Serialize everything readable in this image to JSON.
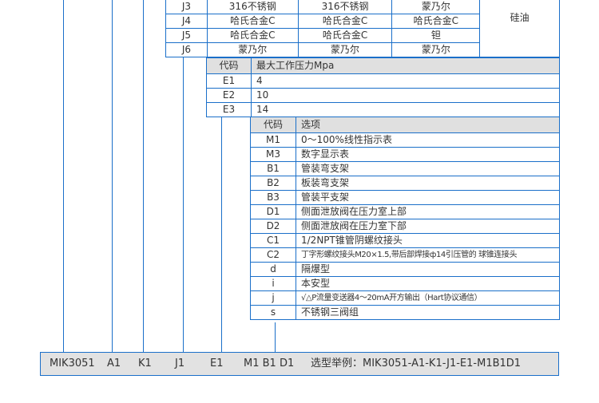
{
  "material_table": {
    "rows": [
      {
        "code": "J3",
        "c1": "316不锈钢",
        "c2": "316不锈钢",
        "c3": "蒙乃尔"
      },
      {
        "code": "J4",
        "c1": "哈氏合金C",
        "c2": "哈氏合金C",
        "c3": "哈氏合金C"
      },
      {
        "code": "J5",
        "c1": "哈氏合金C",
        "c2": "哈氏合金C",
        "c3": "钽"
      },
      {
        "code": "J6",
        "c1": "蒙乃尔",
        "c2": "蒙乃尔",
        "c3": "蒙乃尔"
      }
    ],
    "fill": "硅油"
  },
  "pressure_table": {
    "header": [
      "代码",
      "最大工作压力Mpa"
    ],
    "rows": [
      [
        "E1",
        "4"
      ],
      [
        "E2",
        "10"
      ],
      [
        "E3",
        "14"
      ]
    ]
  },
  "options_table": {
    "header": [
      "代码",
      "选项"
    ],
    "rows": [
      [
        "M1",
        "0～100%线性指示表"
      ],
      [
        "M3",
        "数字显示表"
      ],
      [
        "B1",
        "管装弯支架"
      ],
      [
        "B2",
        "板装弯支架"
      ],
      [
        "B3",
        "管装平支架"
      ],
      [
        "D1",
        "侧面泄放阀在压力室上部"
      ],
      [
        "D2",
        "侧面泄放阀在压力室下部"
      ],
      [
        "C1",
        "1/2NPT锥管阴螺纹接头"
      ],
      [
        "C2",
        "丁字形螺纹接头M20×1.5,带后部焊接ф14引压管的 球锥连接头"
      ],
      [
        "d",
        "隔爆型"
      ],
      [
        "i",
        "本安型"
      ],
      [
        "j",
        "√△P流量变送器4～20mA开方输出（Hart协议通信）"
      ],
      [
        "s",
        "不锈钢三阀组"
      ]
    ]
  },
  "example_bar": {
    "model": "MIK3051",
    "a": "A1",
    "k": "K1",
    "j": "J1",
    "e": "E1",
    "opts": "M1 B1 D1",
    "example": "选型举例：MIK3051-A1-K1-J1-E1-M1B1D1"
  },
  "colors": {
    "line": "#1a6fc9",
    "header_bg": "#e0e0e0"
  }
}
